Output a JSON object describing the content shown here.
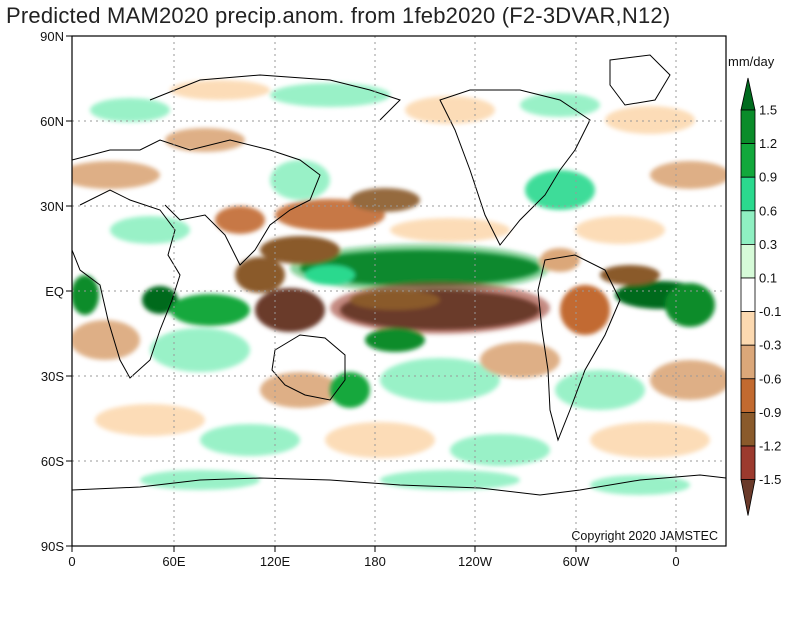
{
  "title": "Predicted MAM2020 precip.anom. from 1feb2020 (F2-3DVAR,N12)",
  "copyright": "Copyright 2020 JAMSTEC",
  "lat_labels": [
    "90N",
    "60N",
    "30N",
    "EQ",
    "30S",
    "60S",
    "90S"
  ],
  "lon_labels": [
    "0",
    "60E",
    "120E",
    "180",
    "120W",
    "60W",
    "0"
  ],
  "colorbar": {
    "unit": "mm/day",
    "labels": [
      "1.5",
      "1.2",
      "0.9",
      "0.6",
      "0.3",
      "0.1",
      "-0.1",
      "-0.3",
      "-0.6",
      "-0.9",
      "-1.2",
      "-1.5"
    ],
    "colors": [
      "#006b1e",
      "#0a8c2a",
      "#12a83c",
      "#2bd98e",
      "#8ff0c2",
      "#d6fbd8",
      "#ffffff",
      "#fcd9b0",
      "#dba779",
      "#c26a30",
      "#8a5a2b",
      "#9c3a2e",
      "#6a3a2a"
    ]
  },
  "chart_data": {
    "type": "heatmap",
    "title": "Predicted MAM2020 precip.anom. from 1feb2020 (F2-3DVAR,N12)",
    "variable": "precipitation anomaly",
    "unit": "mm/day",
    "x_axis": {
      "ticks": [
        "0",
        "60E",
        "120E",
        "180",
        "120W",
        "60W",
        "0"
      ],
      "range": [
        0,
        390
      ]
    },
    "y_axis": {
      "ticks": [
        "90N",
        "60N",
        "30N",
        "EQ",
        "30S",
        "60S",
        "90S"
      ],
      "range": [
        -90,
        90
      ]
    },
    "levels": [
      -1.5,
      -1.2,
      -0.9,
      -0.6,
      -0.3,
      -0.1,
      0.1,
      0.3,
      0.6,
      0.9,
      1.2,
      1.5
    ],
    "grid": true,
    "legend": "right"
  }
}
